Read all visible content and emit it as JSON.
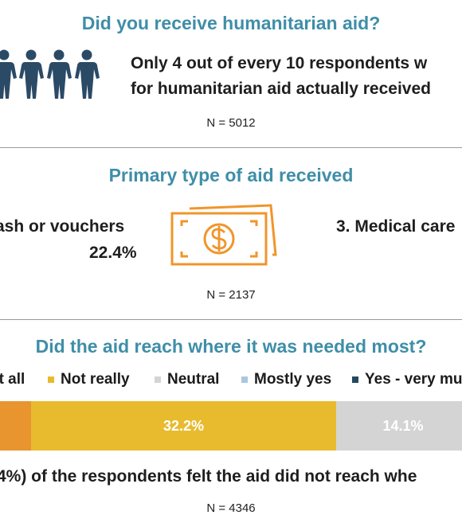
{
  "section1": {
    "title": "Did you receive humanitarian aid?",
    "line1": "Only 4 out of every 10 respondents w",
    "line2": "for humanitarian aid actually received",
    "n": "N = 5012",
    "icon_color": "#2b4a66"
  },
  "section2": {
    "title": "Primary type of aid received",
    "left_line1": "ash or vouchers",
    "left_line2": "22.4%",
    "right_line1": "3. Medical care",
    "n": "N = 2137",
    "icon": "cash-icon",
    "icon_color": "#f0952a"
  },
  "section3": {
    "title": "Did the aid reach where it was needed most?",
    "summary": "4%) of the respondents felt the aid did not reach whe",
    "n": "N = 4346"
  },
  "chart_data": {
    "type": "bar",
    "title": "Did the aid reach where it was needed most?",
    "legend": [
      "at all",
      "Not really",
      "Neutral",
      "Mostly yes",
      "Yes - very mu"
    ],
    "series": [
      {
        "name": "at all",
        "value": null,
        "color": "#e8942f"
      },
      {
        "name": "Not really",
        "value": 32.2,
        "label": "32.2%",
        "color": "#e8bb2f"
      },
      {
        "name": "Neutral",
        "value": 14.1,
        "label": "14.1%",
        "color": "#d4d4d4"
      }
    ]
  }
}
